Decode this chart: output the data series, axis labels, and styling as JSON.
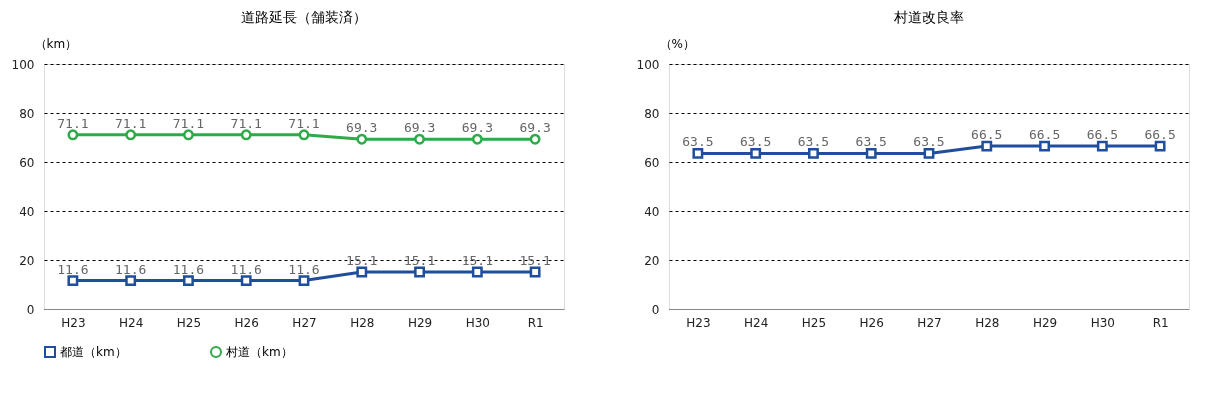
{
  "chart_data": [
    {
      "type": "line",
      "title": "道路延長（舗装済）",
      "ylabel": "（km）",
      "categories": [
        "H23",
        "H24",
        "H25",
        "H26",
        "H27",
        "H28",
        "H29",
        "H30",
        "R1"
      ],
      "series": [
        {
          "name": "都道（km）",
          "color": "#1f4e9c",
          "marker": "square",
          "values": [
            11.6,
            11.6,
            11.6,
            11.6,
            11.6,
            15.1,
            15.1,
            15.1,
            15.1
          ]
        },
        {
          "name": "村道（km）",
          "color": "#2eaa48",
          "marker": "circle",
          "values": [
            71.1,
            71.1,
            71.1,
            71.1,
            71.1,
            69.3,
            69.3,
            69.3,
            69.3
          ]
        }
      ],
      "ylim": [
        0,
        100
      ],
      "yticks": [
        0,
        20,
        40,
        60,
        80,
        100
      ],
      "grid": "y",
      "legend": "bottom",
      "data_labels": true,
      "line_style": "solid"
    },
    {
      "type": "line",
      "title": "村道改良率",
      "ylabel": "（%）",
      "categories": [
        "H23",
        "H24",
        "H25",
        "H26",
        "H27",
        "H28",
        "H29",
        "H30",
        "R1"
      ],
      "series": [
        {
          "color": "#1f4e9c",
          "marker": "square",
          "values": [
            63.5,
            63.5,
            63.5,
            63.5,
            63.5,
            66.5,
            66.5,
            66.5,
            66.5
          ]
        }
      ],
      "ylim": [
        0,
        100
      ],
      "yticks": [
        0,
        20,
        40,
        60,
        80,
        100
      ],
      "grid": "y",
      "data_labels": true,
      "line_style": "solid"
    }
  ]
}
